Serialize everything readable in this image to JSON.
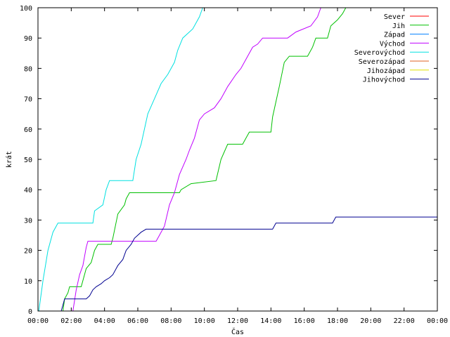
{
  "chart_data": {
    "type": "line",
    "xlabel": "Čas",
    "ylabel": "krát",
    "xlim": [
      0,
      24
    ],
    "ylim": [
      0,
      100
    ],
    "x_ticks": [
      "00:00",
      "02:00",
      "04:00",
      "06:00",
      "08:00",
      "10:00",
      "12:00",
      "14:00",
      "16:00",
      "18:00",
      "20:00",
      "22:00",
      "00:00"
    ],
    "y_ticks": [
      0,
      10,
      20,
      30,
      40,
      50,
      60,
      70,
      80,
      90,
      100
    ],
    "grid": false,
    "legend_position": "top-right",
    "series": [
      {
        "name": "Sever",
        "color": "#ff0000",
        "points": []
      },
      {
        "name": "Jih",
        "color": "#00c000",
        "points": [
          [
            1.5,
            0
          ],
          [
            1.6,
            4
          ],
          [
            1.8,
            6
          ],
          [
            1.9,
            8
          ],
          [
            2.6,
            8
          ],
          [
            2.9,
            14
          ],
          [
            3.2,
            16
          ],
          [
            3.4,
            20
          ],
          [
            3.6,
            22
          ],
          [
            4.4,
            22
          ],
          [
            4.5,
            24
          ],
          [
            4.8,
            32
          ],
          [
            5.2,
            35
          ],
          [
            5.3,
            37
          ],
          [
            5.5,
            39
          ],
          [
            8.5,
            39
          ],
          [
            8.6,
            40
          ],
          [
            9.2,
            42
          ],
          [
            10.7,
            43
          ],
          [
            11.0,
            50
          ],
          [
            11.4,
            55
          ],
          [
            12.3,
            55
          ],
          [
            12.5,
            57
          ],
          [
            12.7,
            59
          ],
          [
            14.0,
            59
          ],
          [
            14.1,
            64
          ],
          [
            14.5,
            74
          ],
          [
            14.8,
            82
          ],
          [
            15.1,
            84
          ],
          [
            16.2,
            84
          ],
          [
            16.5,
            87
          ],
          [
            16.7,
            90
          ],
          [
            17.4,
            90
          ],
          [
            17.6,
            94
          ],
          [
            18.0,
            96
          ],
          [
            18.3,
            98
          ],
          [
            18.5,
            100
          ]
        ]
      },
      {
        "name": "Západ",
        "color": "#0080ff",
        "points": []
      },
      {
        "name": "Východ",
        "color": "#c000ff",
        "points": [
          [
            2.1,
            0
          ],
          [
            2.3,
            7
          ],
          [
            2.5,
            12
          ],
          [
            2.7,
            15
          ],
          [
            2.9,
            21
          ],
          [
            3.0,
            23
          ],
          [
            7.1,
            23
          ],
          [
            7.3,
            25
          ],
          [
            7.6,
            28
          ],
          [
            7.9,
            35
          ],
          [
            8.2,
            39
          ],
          [
            8.5,
            45
          ],
          [
            8.9,
            50
          ],
          [
            9.1,
            53
          ],
          [
            9.4,
            57
          ],
          [
            9.7,
            63
          ],
          [
            10.0,
            65
          ],
          [
            10.6,
            67
          ],
          [
            11.0,
            70
          ],
          [
            11.4,
            74
          ],
          [
            11.9,
            78
          ],
          [
            12.2,
            80
          ],
          [
            12.6,
            84
          ],
          [
            12.9,
            87
          ],
          [
            13.2,
            88
          ],
          [
            13.5,
            90
          ],
          [
            15.0,
            90
          ],
          [
            15.5,
            92
          ],
          [
            16.4,
            94
          ],
          [
            16.8,
            97
          ],
          [
            17.0,
            100
          ]
        ]
      },
      {
        "name": "Severovýchod",
        "color": "#00e0e0",
        "points": [
          [
            0.05,
            0
          ],
          [
            0.3,
            10
          ],
          [
            0.6,
            20
          ],
          [
            0.9,
            26
          ],
          [
            1.2,
            29
          ],
          [
            3.3,
            29
          ],
          [
            3.4,
            33
          ],
          [
            3.9,
            35
          ],
          [
            4.1,
            40
          ],
          [
            4.3,
            43
          ],
          [
            5.7,
            43
          ],
          [
            5.9,
            50
          ],
          [
            6.2,
            55
          ],
          [
            6.6,
            65
          ],
          [
            7.0,
            70
          ],
          [
            7.4,
            75
          ],
          [
            7.8,
            78
          ],
          [
            8.2,
            82
          ],
          [
            8.4,
            86
          ],
          [
            8.7,
            90
          ],
          [
            9.3,
            93
          ],
          [
            9.7,
            97
          ],
          [
            9.9,
            100
          ]
        ]
      },
      {
        "name": "Severozápad",
        "color": "#e06020",
        "points": []
      },
      {
        "name": "Jihozápad",
        "color": "#e0e000",
        "points": []
      },
      {
        "name": "Jihovýchod",
        "color": "#000090",
        "points": [
          [
            1.4,
            0
          ],
          [
            1.5,
            2
          ],
          [
            1.6,
            4
          ],
          [
            2.9,
            4
          ],
          [
            3.1,
            5
          ],
          [
            3.3,
            7
          ],
          [
            3.5,
            8
          ],
          [
            3.8,
            9
          ],
          [
            4.0,
            10
          ],
          [
            4.3,
            11
          ],
          [
            4.5,
            12
          ],
          [
            4.8,
            15
          ],
          [
            5.1,
            17
          ],
          [
            5.3,
            20
          ],
          [
            5.6,
            22
          ],
          [
            5.8,
            24
          ],
          [
            6.2,
            26
          ],
          [
            6.5,
            27
          ],
          [
            14.1,
            27
          ],
          [
            14.3,
            29
          ],
          [
            17.7,
            29
          ],
          [
            17.9,
            31
          ],
          [
            24.0,
            31
          ]
        ]
      }
    ]
  }
}
